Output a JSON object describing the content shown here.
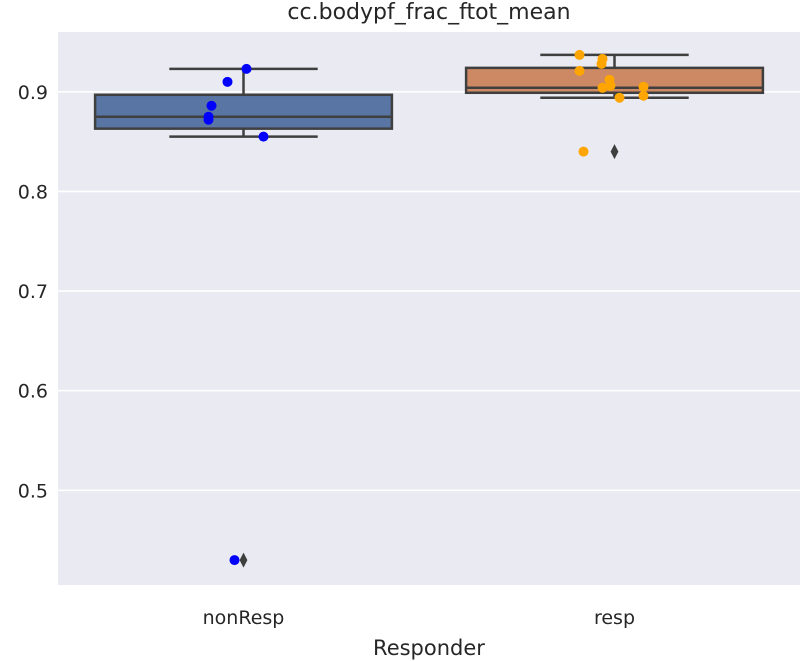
{
  "chart_data": {
    "type": "box",
    "title": "cc.bodypf_frac_ftot_mean",
    "xlabel": "Responder",
    "ylabel": "",
    "categories": [
      "nonResp",
      "resp"
    ],
    "ylim": [
      0.405,
      0.96
    ],
    "yticks": [
      0.5,
      0.6,
      0.7,
      0.8,
      0.9
    ],
    "ytick_labels": [
      "0.5",
      "0.6",
      "0.7",
      "0.8",
      "0.9"
    ],
    "grid": true,
    "legend": "none",
    "boxes": [
      {
        "name": "nonResp",
        "q1": 0.863,
        "median": 0.875,
        "q3": 0.897,
        "whisker_low": 0.855,
        "whisker_high": 0.923,
        "outliers": [
          0.43
        ],
        "box_color": "#5975a4",
        "point_color": "#0000ff",
        "points": [
          0.923,
          0.91,
          0.886,
          0.875,
          0.872,
          0.855,
          0.43
        ]
      },
      {
        "name": "resp",
        "q1": 0.899,
        "median": 0.904,
        "q3": 0.924,
        "whisker_low": 0.894,
        "whisker_high": 0.937,
        "outliers": [
          0.84
        ],
        "box_color": "#cc8963",
        "point_color": "#ffa500",
        "points": [
          0.937,
          0.933,
          0.928,
          0.921,
          0.912,
          0.906,
          0.905,
          0.904,
          0.896,
          0.894,
          0.84
        ]
      }
    ]
  }
}
